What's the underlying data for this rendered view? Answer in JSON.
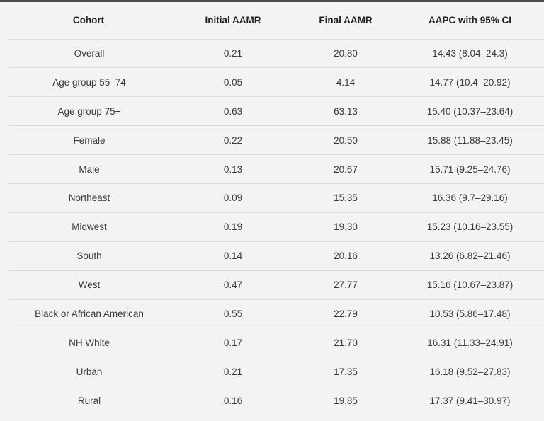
{
  "table": {
    "headers": {
      "cohort": "Cohort",
      "initial": "Initial AAMR",
      "final": "Final AAMR",
      "aapc": "AAPC with 95% CI"
    },
    "rows": [
      {
        "cohort": "Overall",
        "initial": "0.21",
        "final": "20.80",
        "aapc": "14.43 (8.04–24.3)"
      },
      {
        "cohort": "Age group 55–74",
        "initial": "0.05",
        "final": "4.14",
        "aapc": "14.77 (10.4–20.92)"
      },
      {
        "cohort": "Age group 75+",
        "initial": "0.63",
        "final": "63.13",
        "aapc": "15.40 (10.37–23.64)"
      },
      {
        "cohort": "Female",
        "initial": "0.22",
        "final": "20.50",
        "aapc": "15.88 (11.88–23.45)"
      },
      {
        "cohort": "Male",
        "initial": "0.13",
        "final": "20.67",
        "aapc": "15.71 (9.25–24.76)"
      },
      {
        "cohort": "Northeast",
        "initial": "0.09",
        "final": "15.35",
        "aapc": "16.36 (9.7–29.16)"
      },
      {
        "cohort": "Midwest",
        "initial": "0.19",
        "final": "19.30",
        "aapc": "15.23 (10.16–23.55)"
      },
      {
        "cohort": "South",
        "initial": "0.14",
        "final": "20.16",
        "aapc": "13.26 (6.82–21.46)"
      },
      {
        "cohort": "West",
        "initial": "0.47",
        "final": "27.77",
        "aapc": "15.16 (10.67–23.87)"
      },
      {
        "cohort": "Black or African American",
        "initial": "0.55",
        "final": "22.79",
        "aapc": "10.53 (5.86–17.48)"
      },
      {
        "cohort": "NH White",
        "initial": "0.17",
        "final": "21.70",
        "aapc": "16.31 (11.33–24.91)"
      },
      {
        "cohort": "Urban",
        "initial": "0.21",
        "final": "17.35",
        "aapc": "16.18 (9.52–27.83)"
      },
      {
        "cohort": "Rural",
        "initial": "0.16",
        "final": "19.85",
        "aapc": "17.37 (9.41–30.97)"
      }
    ]
  }
}
